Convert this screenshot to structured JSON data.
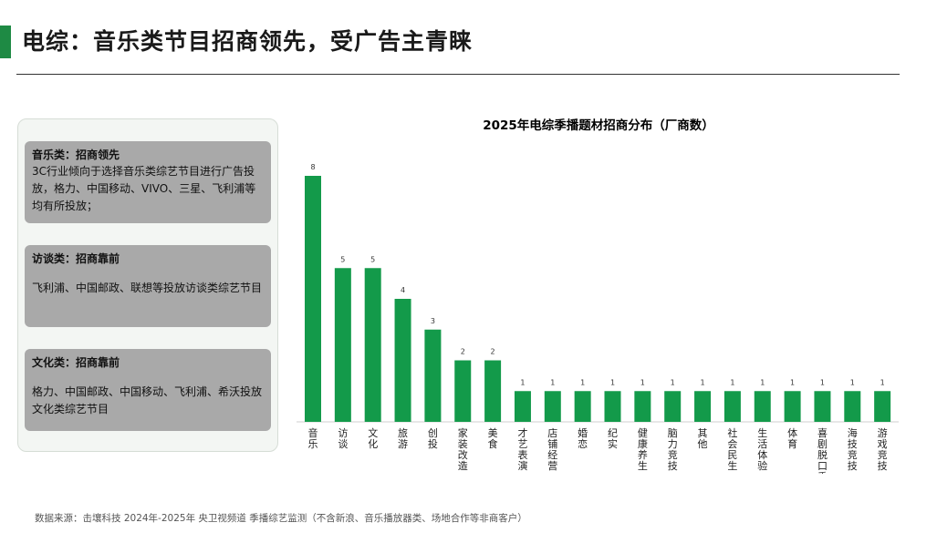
{
  "header": {
    "title": "电综：音乐类节目招商领先，受广告主青睐"
  },
  "panel": {
    "cards": [
      {
        "title": "音乐类：招商领先",
        "body": "3C行业倾向于选择音乐类综艺节目进行广告投放，格力、中国移动、VIVO、三星、飞利浦等均有所投放；"
      },
      {
        "title": "访谈类：招商靠前",
        "body": "飞利浦、中国邮政、联想等投放访谈类综艺节目"
      },
      {
        "title": "文化类：招商靠前",
        "body": "格力、中国邮政、中国移动、飞利浦、希沃投放文化类综艺节目"
      }
    ]
  },
  "colors": {
    "accent": "#1e8a44",
    "bar": "#139a4a",
    "card_bg": "#a9a9a9"
  },
  "chart_data": {
    "type": "bar",
    "title": "2025年电综季播题材招商分布（厂商数）",
    "categories": [
      "音乐",
      "访谈",
      "文化",
      "旅游",
      "创投",
      "家装改造",
      "美食",
      "才艺表演",
      "店铺经营",
      "婚恋",
      "纪实",
      "健康养生",
      "脑力竞技",
      "其他",
      "社会民生",
      "生活体验",
      "体育",
      "喜剧脱口秀",
      "海技竞技",
      "游戏竞技"
    ],
    "values": [
      8,
      5,
      5,
      4,
      3,
      2,
      2,
      1,
      1,
      1,
      1,
      1,
      1,
      1,
      1,
      1,
      1,
      1,
      1,
      1
    ],
    "xlabel": "",
    "ylabel": "",
    "ylim": [
      0,
      8
    ],
    "grid": false,
    "legend": "none",
    "data_labels": true
  },
  "footer": {
    "source": "数据来源：击壤科技 2024年-2025年 央卫视频道 季播综艺监测（不含新浪、音乐播放器类、场地合作等非商客户）"
  }
}
